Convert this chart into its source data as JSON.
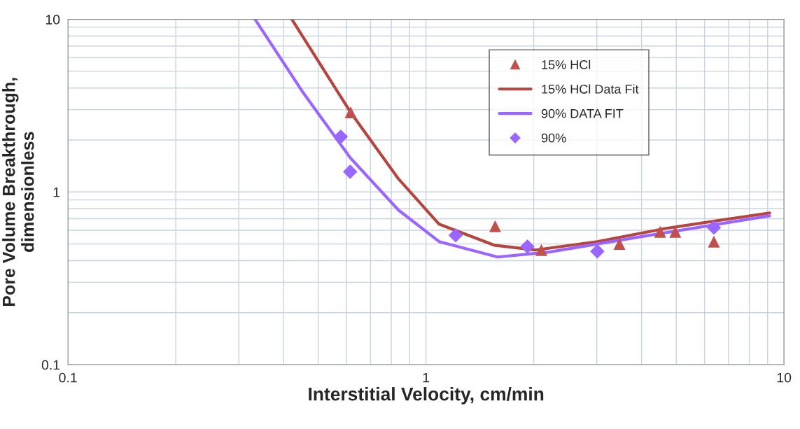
{
  "chart_data": {
    "type": "scatter",
    "xlabel": "Interstitial Velocity, cm/min",
    "ylabel": "Pore Volume Breakthrough,\ndimensionless",
    "log": "xy",
    "xlim": [
      0.1,
      10
    ],
    "ylim": [
      0.1,
      10
    ],
    "xticks": [
      0.1,
      {
        "value": 0.2,
        "label": null
      },
      {
        "value": 0.3,
        "label": null
      },
      {
        "value": 0.4,
        "label": null
      },
      {
        "value": 0.5,
        "label": null
      },
      {
        "value": 0.6,
        "label": null
      },
      {
        "value": 0.7,
        "label": null
      },
      {
        "value": 0.8,
        "label": null
      },
      {
        "value": 0.9,
        "label": null
      },
      1,
      {
        "value": 2,
        "label": null
      },
      {
        "value": 3,
        "label": null
      },
      {
        "value": 4,
        "label": null
      },
      {
        "value": 5,
        "label": null
      },
      {
        "value": 6,
        "label": null
      },
      {
        "value": 7,
        "label": null
      },
      {
        "value": 8,
        "label": null
      },
      {
        "value": 9,
        "label": null
      },
      10
    ],
    "yticks": [
      0.1,
      {
        "value": 0.2,
        "label": null
      },
      {
        "value": 0.3,
        "label": null
      },
      {
        "value": 0.4,
        "label": null
      },
      {
        "value": 0.5,
        "label": null
      },
      {
        "value": 0.6,
        "label": null
      },
      {
        "value": 0.7,
        "label": null
      },
      {
        "value": 0.8,
        "label": null
      },
      {
        "value": 0.9,
        "label": null
      },
      1,
      {
        "value": 2,
        "label": null
      },
      {
        "value": 3,
        "label": null
      },
      {
        "value": 4,
        "label": null
      },
      {
        "value": 5,
        "label": null
      },
      {
        "value": 6,
        "label": null
      },
      {
        "value": 7,
        "label": null
      },
      {
        "value": 8,
        "label": null
      },
      {
        "value": 9,
        "label": null
      },
      10
    ],
    "grid": true,
    "legend": "top right",
    "series": [
      {
        "name": "15% HCl",
        "marker": "triangle",
        "color": "#c0504d",
        "x": [
          0.616,
          1.56,
          2.1,
          3.47,
          4.51,
          4.97,
          6.37
        ],
        "values": [
          2.89,
          0.634,
          0.461,
          0.5,
          0.588,
          0.588,
          0.516
        ]
      },
      {
        "name": "15% HCl Data Fit",
        "type": "line",
        "color": "#b5453f",
        "x": [
          0.422,
          0.616,
          0.838,
          1.088,
          1.55,
          2.02,
          3.01,
          4.69,
          9.12
        ],
        "values": [
          10,
          2.89,
          1.19,
          0.651,
          0.492,
          0.461,
          0.516,
          0.616,
          0.756
        ]
      },
      {
        "name": "90% DATA FIT",
        "type": "line",
        "color": "#9966ff",
        "x": [
          0.333,
          0.451,
          0.614,
          0.838,
          1.088,
          1.585,
          2.21,
          3.78,
          9.12
        ],
        "values": [
          10,
          3.83,
          1.58,
          0.785,
          0.516,
          0.42,
          0.449,
          0.541,
          0.728
        ]
      },
      {
        "name": "90%",
        "marker": "diamond",
        "color": "#9966ff",
        "x": [
          0.578,
          0.614,
          1.21,
          1.92,
          3.01,
          6.37
        ],
        "values": [
          2.09,
          1.31,
          0.561,
          0.483,
          0.453,
          0.622
        ]
      }
    ]
  }
}
